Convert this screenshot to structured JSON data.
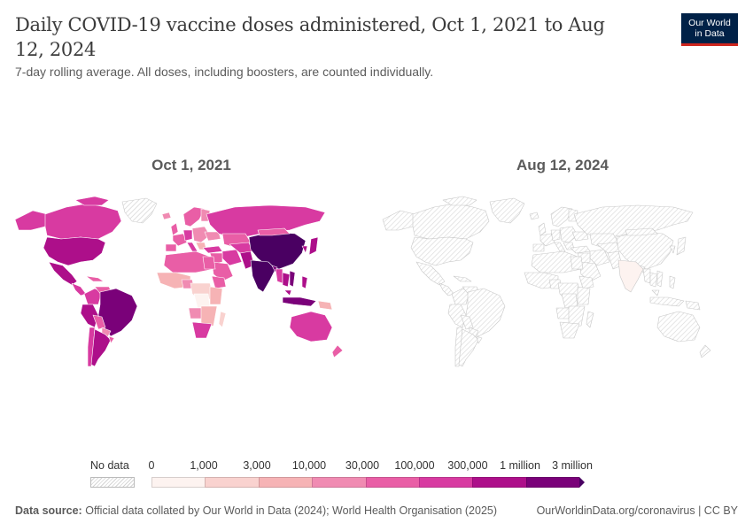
{
  "header": {
    "title": "Daily COVID-19 vaccine doses administered, Oct 1, 2021 to Aug 12, 2024",
    "subtitle": "7-day rolling average. All doses, including boosters, are counted individually.",
    "logo_line1": "Our World",
    "logo_line2": "in Data"
  },
  "maps": {
    "left_title": "Oct 1, 2021",
    "right_title": "Aug 12, 2024"
  },
  "legend": {
    "no_data_label": "No data",
    "ticks": [
      "0",
      "1,000",
      "3,000",
      "10,000",
      "30,000",
      "100,000",
      "300,000",
      "1 million",
      "3 million"
    ],
    "bin_colors": [
      "#fdf3f0",
      "#f9d2cf",
      "#f6b3b5",
      "#f08bb2",
      "#e95ea6",
      "#d83aa1",
      "#ad0f8a",
      "#7a0179",
      "#4a0062"
    ],
    "no_data_color": "#e8e8e8"
  },
  "colors": {
    "title": "#3b3b3b",
    "logo_bg": "#002147",
    "logo_bar": "#ce261e"
  },
  "footer": {
    "source_label": "Data source:",
    "source_text": "Official data collated by Our World in Data (2024); World Health Organisation (2025)",
    "link": "OurWorldinData.org/coronavirus",
    "license": "| CC BY"
  }
}
